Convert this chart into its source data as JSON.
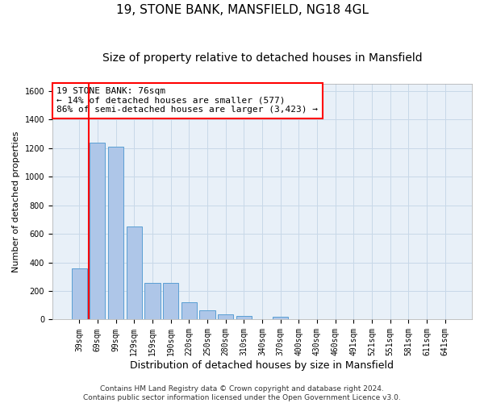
{
  "title1": "19, STONE BANK, MANSFIELD, NG18 4GL",
  "title2": "Size of property relative to detached houses in Mansfield",
  "xlabel": "Distribution of detached houses by size in Mansfield",
  "ylabel": "Number of detached properties",
  "categories": [
    "39sqm",
    "69sqm",
    "99sqm",
    "129sqm",
    "159sqm",
    "190sqm",
    "220sqm",
    "250sqm",
    "280sqm",
    "310sqm",
    "340sqm",
    "370sqm",
    "400sqm",
    "430sqm",
    "460sqm",
    "491sqm",
    "521sqm",
    "551sqm",
    "581sqm",
    "611sqm",
    "641sqm"
  ],
  "values": [
    355,
    1240,
    1210,
    650,
    255,
    255,
    120,
    65,
    38,
    28,
    0,
    22,
    0,
    0,
    0,
    0,
    0,
    0,
    0,
    0,
    0
  ],
  "bar_color": "#aec6e8",
  "bar_edgecolor": "#5a9fd4",
  "redline_color": "red",
  "redline_x": 0.5,
  "annotation_text": "19 STONE BANK: 76sqm\n← 14% of detached houses are smaller (577)\n86% of semi-detached houses are larger (3,423) →",
  "annotation_box_color": "white",
  "annotation_box_edgecolor": "red",
  "grid_color": "#c8d8e8",
  "background_color": "#e8f0f8",
  "ylim": [
    0,
    1650
  ],
  "yticks": [
    0,
    200,
    400,
    600,
    800,
    1000,
    1200,
    1400,
    1600
  ],
  "footnote": "Contains HM Land Registry data © Crown copyright and database right 2024.\nContains public sector information licensed under the Open Government Licence v3.0.",
  "title1_fontsize": 11,
  "title2_fontsize": 10,
  "xlabel_fontsize": 9,
  "ylabel_fontsize": 8,
  "tick_fontsize": 7,
  "annot_fontsize": 8,
  "footnote_fontsize": 6.5
}
